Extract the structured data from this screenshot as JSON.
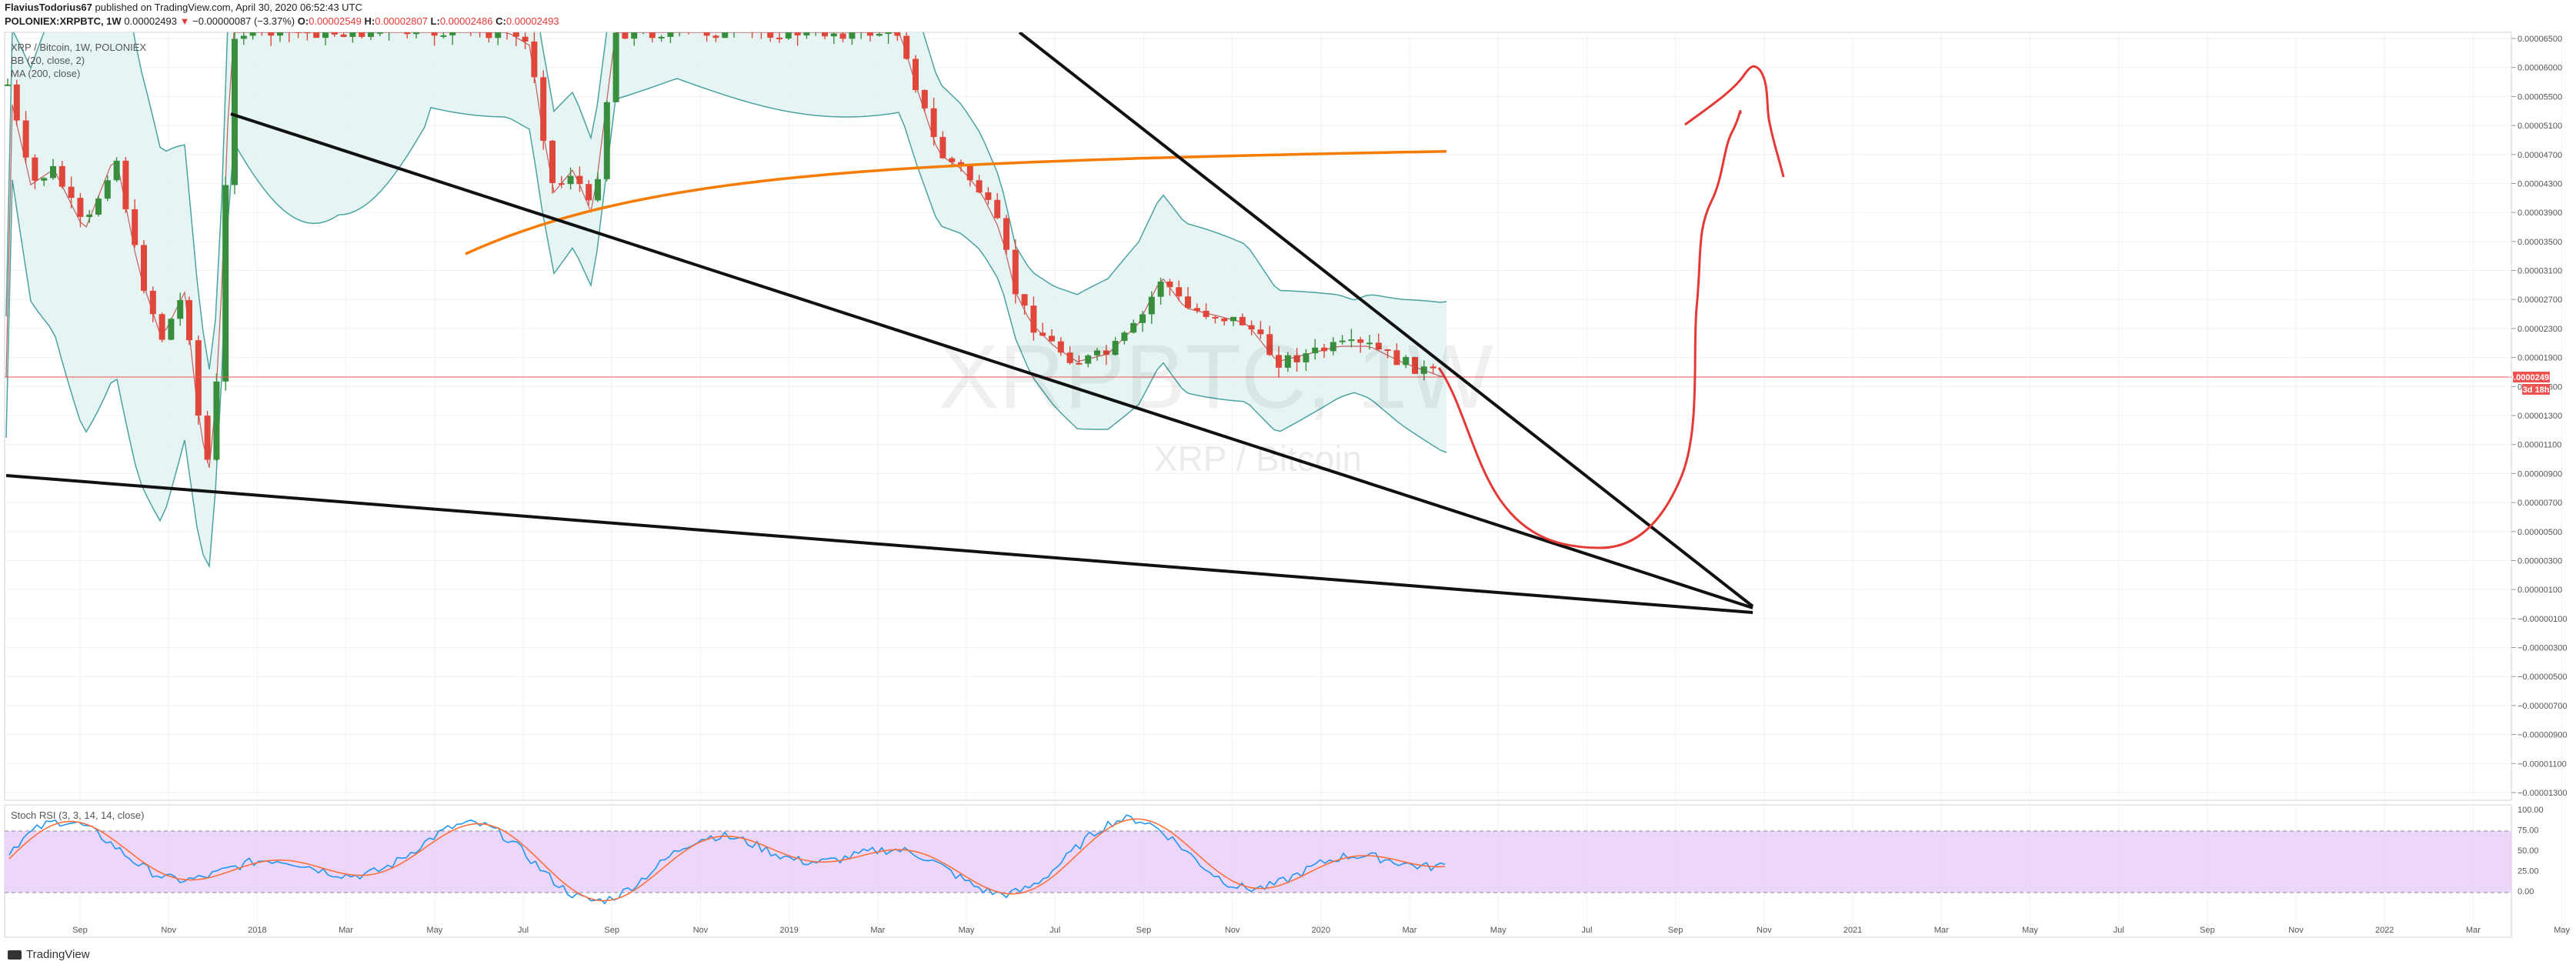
{
  "header": {
    "publisher": "FlaviusTodorius67",
    "published": "published on TradingView.com, April 30, 2020 06:52:43 UTC",
    "symbol": "POLONIEX:XRPBTC, 1W",
    "last": "0.00002493",
    "change": "−0.00000087 (−3.37%)",
    "o_label": "O:",
    "o": "0.00002549",
    "h_label": "H:",
    "h": "0.00002807",
    "l_label": "L:",
    "l": "0.00002486",
    "c_label": "C:",
    "c": "0.00002493"
  },
  "legend": {
    "title": "XRP / Bitcoin, 1W, POLONIEX",
    "bb": "BB (20, close, 2)",
    "ma": "MA (200, close)"
  },
  "watermark": {
    "symbol": "XRPBTC, 1W",
    "name": "XRP / Bitcoin"
  },
  "rsi": {
    "label": "Stoch RSI (3, 3, 14, 14, close)",
    "ticks": [
      "100.00",
      "75.00",
      "50.00",
      "25.00",
      "0.00"
    ]
  },
  "last_badge": {
    "price": "0.00002493",
    "countdown": "3d 18h"
  },
  "branding": "TradingView",
  "colors": {
    "up": "#388e3c",
    "down": "#e0463a",
    "ma": "#f57c00",
    "bb": "#4aa3a0",
    "bb_fill": "#e0f2f1",
    "rsi_fill": "#e6c8f7",
    "k": "#2196f3",
    "d": "#ff6f3c",
    "lastline": "#ef5350",
    "drawing": "#e53935"
  },
  "chart_data": {
    "type": "candlestick",
    "price_axis_labels": [
      "0.00006500",
      "0.00006000",
      "0.00005500",
      "0.00005100",
      "0.00004700",
      "0.00004300",
      "0.00003900",
      "0.00003500",
      "0.00003100",
      "0.00002700",
      "0.00002300",
      "0.00001900",
      "0.00001600",
      "0.00001300",
      "0.00001100",
      "0.00000900",
      "0.00000700",
      "0.00000500",
      "0.00000300",
      "0.00000100",
      "−0.00000100",
      "−0.00000300",
      "−0.00000500",
      "−0.00000700",
      "−0.00000900",
      "−0.00001100",
      "−0.00001300"
    ],
    "time_axis_labels": [
      "Sep",
      "Nov",
      "2018",
      "Mar",
      "May",
      "Jul",
      "Sep",
      "Nov",
      "2019",
      "Mar",
      "May",
      "Jul",
      "Sep",
      "Nov",
      "2020",
      "Mar",
      "May",
      "Jul",
      "Sep",
      "Nov",
      "2021",
      "Mar",
      "May",
      "Jul",
      "Sep",
      "Nov",
      "2022",
      "Mar",
      "May"
    ],
    "candles_sample": [
      {
        "date": "2020-03-02",
        "o": 2.75e-05,
        "h": 2.85e-05,
        "l": 2.6e-05,
        "c": 2.65e-05
      },
      {
        "date": "2020-03-30",
        "o": 2.62e-05,
        "h": 2.75e-05,
        "l": 2.55e-05,
        "c": 2.7e-05
      },
      {
        "date": "2020-04-27",
        "o": 2.549e-05,
        "h": 2.807e-05,
        "l": 2.486e-05,
        "c": 2.493e-05
      }
    ],
    "indicators": [
      "BB (20, close, 2)",
      "MA (200, close)",
      "Stoch RSI (3, 3, 14, 14, close)"
    ]
  }
}
